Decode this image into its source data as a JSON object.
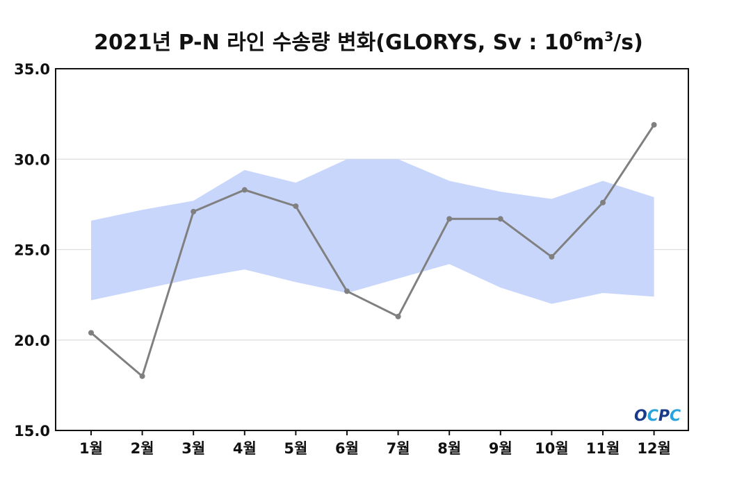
{
  "chart_data": {
    "type": "line",
    "title": "2021년 P-N 라인 수송량 변화(GLORYS, Sv : 10",
    "title_sup1": "6",
    "title_mid": "m",
    "title_sup2": "3",
    "title_end": "/s)",
    "categories": [
      "1월",
      "2월",
      "3월",
      "4월",
      "5월",
      "6월",
      "7월",
      "8월",
      "9월",
      "10월",
      "11월",
      "12월"
    ],
    "series": [
      {
        "values": [
          20.4,
          18.0,
          27.1,
          28.3,
          27.4,
          22.7,
          21.3,
          26.7,
          26.7,
          24.6,
          27.6,
          31.9
        ]
      }
    ],
    "band": {
      "upper": [
        26.6,
        27.2,
        27.7,
        29.4,
        28.7,
        30.0,
        30.0,
        28.8,
        28.2,
        27.8,
        28.8,
        27.9
      ],
      "lower": [
        22.2,
        22.8,
        23.4,
        23.9,
        23.2,
        22.6,
        23.4,
        24.2,
        22.9,
        22.0,
        22.6,
        22.4
      ]
    },
    "ylim": [
      15.0,
      35.0
    ],
    "yticks": [
      "15.0",
      "20.0",
      "25.0",
      "30.0",
      "35.0"
    ],
    "ytick_values": [
      15,
      20,
      25,
      30,
      35
    ],
    "gridlines": true,
    "colors": {
      "line": "#808080",
      "band": "#c8d6fb",
      "grid": "#dddddd"
    }
  },
  "logo": {
    "text": "OCPC",
    "colors": [
      "#1a3a8a",
      "#27a3dd"
    ]
  }
}
